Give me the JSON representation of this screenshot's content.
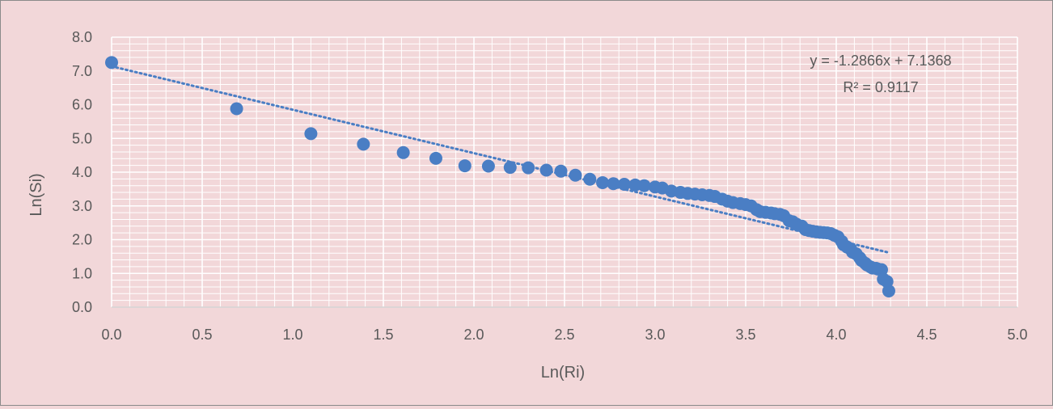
{
  "chart_data": {
    "type": "scatter",
    "title": "",
    "xlabel": "Ln(Ri)",
    "ylabel": "Ln(Si)",
    "xlim": [
      0,
      5
    ],
    "ylim": [
      0,
      8
    ],
    "x_ticks": [
      "0.0",
      "0.5",
      "1.0",
      "1.5",
      "2.0",
      "2.5",
      "3.0",
      "3.5",
      "4.0",
      "4.5",
      "5.0"
    ],
    "y_ticks": [
      "0.0",
      "1.0",
      "2.0",
      "3.0",
      "4.0",
      "5.0",
      "6.0",
      "7.0",
      "8.0"
    ],
    "grid": true,
    "legend": "none",
    "marker_color": "#4a7ec4",
    "trendline": {
      "type": "linear",
      "slope": -1.2866,
      "intercept": 7.1368,
      "x_range": [
        0,
        4.28
      ],
      "style": "dotted",
      "color": "#4a7ec4",
      "equation_label": "y = -1.2866x + 7.1368",
      "r2_label": "R² = 0.9117"
    },
    "series": [
      {
        "points": [
          [
            0.0,
            7.25
          ],
          [
            0.69,
            5.88
          ],
          [
            1.1,
            5.14
          ],
          [
            1.39,
            4.83
          ],
          [
            1.61,
            4.58
          ],
          [
            1.79,
            4.41
          ],
          [
            1.95,
            4.19
          ],
          [
            2.08,
            4.18
          ],
          [
            2.2,
            4.14
          ],
          [
            2.3,
            4.13
          ],
          [
            2.4,
            4.06
          ],
          [
            2.48,
            4.03
          ],
          [
            2.56,
            3.91
          ],
          [
            2.64,
            3.79
          ],
          [
            2.71,
            3.69
          ],
          [
            2.77,
            3.66
          ],
          [
            2.83,
            3.64
          ],
          [
            2.89,
            3.62
          ],
          [
            2.94,
            3.6
          ],
          [
            3.0,
            3.56
          ],
          [
            3.04,
            3.53
          ],
          [
            3.09,
            3.44
          ],
          [
            3.14,
            3.4
          ],
          [
            3.18,
            3.37
          ],
          [
            3.22,
            3.35
          ],
          [
            3.26,
            3.33
          ],
          [
            3.3,
            3.31
          ],
          [
            3.33,
            3.28
          ],
          [
            3.37,
            3.2
          ],
          [
            3.4,
            3.14
          ],
          [
            3.43,
            3.1
          ],
          [
            3.47,
            3.07
          ],
          [
            3.5,
            3.04
          ],
          [
            3.53,
            3.0
          ],
          [
            3.56,
            2.89
          ],
          [
            3.58,
            2.83
          ],
          [
            3.61,
            2.81
          ],
          [
            3.64,
            2.79
          ],
          [
            3.66,
            2.77
          ],
          [
            3.69,
            2.75
          ],
          [
            3.71,
            2.71
          ],
          [
            3.74,
            2.56
          ],
          [
            3.76,
            2.53
          ],
          [
            3.78,
            2.46
          ],
          [
            3.81,
            2.4
          ],
          [
            3.83,
            2.3
          ],
          [
            3.85,
            2.27
          ],
          [
            3.87,
            2.25
          ],
          [
            3.89,
            2.23
          ],
          [
            3.91,
            2.22
          ],
          [
            3.93,
            2.21
          ],
          [
            3.95,
            2.2
          ],
          [
            3.97,
            2.18
          ],
          [
            3.99,
            2.13
          ],
          [
            4.01,
            2.08
          ],
          [
            4.03,
            1.95
          ],
          [
            4.04,
            1.85
          ],
          [
            4.06,
            1.78
          ],
          [
            4.08,
            1.72
          ],
          [
            4.09,
            1.63
          ],
          [
            4.11,
            1.58
          ],
          [
            4.13,
            1.46
          ],
          [
            4.14,
            1.38
          ],
          [
            4.16,
            1.3
          ],
          [
            4.17,
            1.25
          ],
          [
            4.19,
            1.19
          ],
          [
            4.2,
            1.16
          ],
          [
            4.22,
            1.15
          ],
          [
            4.23,
            1.13
          ],
          [
            4.25,
            1.11
          ],
          [
            4.26,
            0.83
          ],
          [
            4.28,
            0.76
          ],
          [
            4.29,
            0.48
          ]
        ]
      }
    ]
  }
}
